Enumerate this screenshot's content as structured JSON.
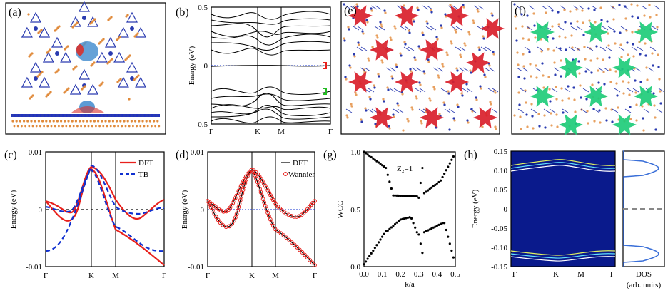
{
  "panels": {
    "a": {
      "label": "(a)"
    },
    "b": {
      "label": "(b)",
      "ylabel": "Energy (eV)",
      "yticks": [
        "0.5",
        "0",
        "-0.5"
      ],
      "xticks": [
        "Γ",
        "K",
        "M",
        "Γ"
      ]
    },
    "c": {
      "label": "(c)",
      "ylabel": "Energy (eV)",
      "yticks": [
        "0.01",
        "0",
        "-0.01"
      ],
      "xticks": [
        "Γ",
        "K",
        "M",
        "Γ"
      ],
      "legend": [
        "DFT",
        "TB"
      ]
    },
    "d": {
      "label": "(d)",
      "ylabel": "Energy (eV)",
      "yticks": [
        "0.01",
        "0",
        "-0.01"
      ],
      "xticks": [
        "Γ",
        "K",
        "M",
        "Γ"
      ],
      "legend": [
        "DFT",
        "Wannier"
      ]
    },
    "e": {
      "label": "(e)"
    },
    "f": {
      "label": "(f)"
    },
    "g": {
      "label": "(g)",
      "ylabel": "WCC",
      "xlabel": "k/a",
      "yticks": [
        "1.0",
        "0.5",
        "0.0"
      ],
      "xticks": [
        "0.0",
        "0.1",
        "0.2",
        "0.3",
        "0.4",
        "0.5"
      ],
      "annotation": "Z₂=1"
    },
    "h": {
      "label": "(h)",
      "ylabel": "Energy (eV)",
      "yticks": [
        "0.15",
        "0.10",
        "0.05",
        "0",
        "-0.05",
        "-0.10",
        "-0.15"
      ],
      "xticks": [
        "Γ",
        "K",
        "M",
        "Γ"
      ],
      "dos_label": "DOS",
      "dos_units": "(arb. units)"
    }
  },
  "colors": {
    "dft_red": "#e8201c",
    "tb_blue": "#1030d0",
    "red_cluster": "#d91f2b",
    "green_cluster": "#1ecc7a",
    "heatmap_bg": "#0a1a8c"
  },
  "chart_data": [
    {
      "type": "line",
      "panel": "b",
      "ylim": [
        -0.5,
        0.5
      ],
      "x": [
        "Γ",
        "K",
        "M",
        "Γ"
      ]
    },
    {
      "type": "line",
      "panel": "c",
      "ylim": [
        -0.01,
        0.01
      ],
      "x": [
        "Γ",
        "K",
        "M",
        "Γ"
      ],
      "series": [
        {
          "name": "DFT",
          "style": "solid red"
        },
        {
          "name": "TB",
          "style": "dashed blue"
        }
      ]
    },
    {
      "type": "line",
      "panel": "d",
      "ylim": [
        -0.01,
        0.01
      ],
      "x": [
        "Γ",
        "K",
        "M",
        "Γ"
      ],
      "series": [
        {
          "name": "DFT",
          "style": "solid black"
        },
        {
          "name": "Wannier",
          "style": "red circles"
        }
      ]
    },
    {
      "type": "scatter",
      "panel": "g",
      "xlim": [
        0.0,
        0.5
      ],
      "ylim": [
        0.0,
        1.0
      ]
    },
    {
      "type": "heatmap",
      "panel": "h",
      "ylim": [
        -0.15,
        0.15
      ],
      "x": [
        "Γ",
        "K",
        "M",
        "Γ"
      ]
    }
  ]
}
